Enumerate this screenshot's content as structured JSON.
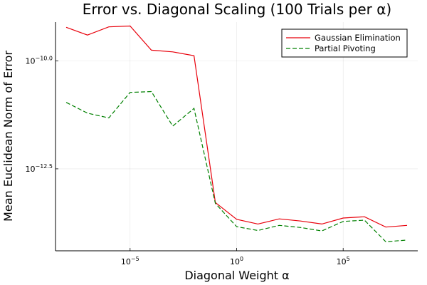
{
  "chart_data": {
    "type": "line",
    "title": "Error vs. Diagonal Scaling (100 Trials per α)",
    "xlabel": "Diagonal Weight α",
    "ylabel": "Mean Euclidean Norm of Error",
    "xscale": "log10",
    "yscale": "log10",
    "xlim_log10": [
      -8.5,
      8.5
    ],
    "ylim_log10": [
      -14.4,
      -9.1
    ],
    "x_ticks": [
      {
        "base": "10",
        "exp": "−5",
        "log10": -5
      },
      {
        "base": "10",
        "exp": "0",
        "log10": 0
      },
      {
        "base": "10",
        "exp": "5",
        "log10": 5
      }
    ],
    "y_ticks": [
      {
        "base": "10",
        "exp": "−10.0",
        "log10": -10.0
      },
      {
        "base": "10",
        "exp": "−12.5",
        "log10": -12.5
      }
    ],
    "grid": true,
    "legend_position": "top-right",
    "x_log10": [
      -8,
      -7,
      -6,
      -5,
      -4,
      -3,
      -2,
      -1,
      0,
      1,
      2,
      3,
      4,
      5,
      6,
      7,
      8
    ],
    "series": [
      {
        "name": "Gaussian Elimination",
        "color": "#e8000b",
        "dash": "solid",
        "y_log10": [
          -9.22,
          -9.4,
          -9.21,
          -9.19,
          -9.75,
          -9.79,
          -9.88,
          -13.28,
          -13.67,
          -13.78,
          -13.66,
          -13.71,
          -13.78,
          -13.64,
          -13.61,
          -13.85,
          -13.81
        ]
      },
      {
        "name": "Partial Pivoting",
        "color": "#008000",
        "dash": "dashed",
        "y_log10": [
          -10.96,
          -11.21,
          -11.32,
          -10.73,
          -10.71,
          -11.51,
          -11.1,
          -13.3,
          -13.84,
          -13.93,
          -13.81,
          -13.86,
          -13.94,
          -13.72,
          -13.69,
          -14.19,
          -14.15
        ]
      }
    ]
  }
}
